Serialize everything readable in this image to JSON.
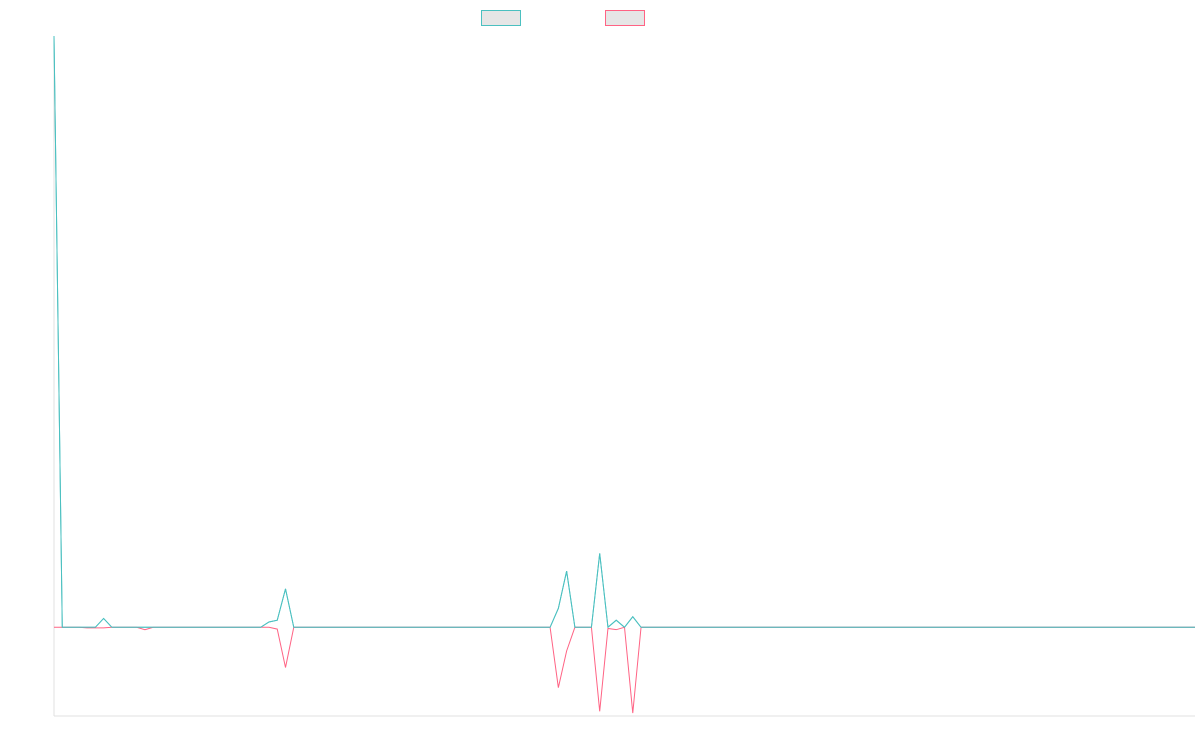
{
  "chart_data": {
    "type": "line",
    "title": "",
    "xlabel": "",
    "ylabel": "",
    "grid": false,
    "legend_position": "top-center",
    "x": [
      0,
      1,
      2,
      3,
      4,
      5,
      6,
      7,
      8,
      9,
      10,
      11,
      12,
      13,
      14,
      15,
      16,
      17,
      18,
      19,
      20,
      21,
      22,
      23,
      24,
      25,
      26,
      27,
      28,
      29,
      30,
      31,
      32,
      33,
      34,
      35,
      36,
      37,
      38,
      39,
      40,
      41,
      42,
      43,
      44,
      45,
      46,
      47,
      48,
      49,
      50,
      51,
      52,
      53,
      54,
      55,
      56,
      57,
      58,
      59,
      60,
      61,
      62,
      63,
      64,
      65,
      66,
      67,
      68,
      69,
      70,
      71,
      72,
      73,
      74,
      75,
      76,
      77,
      78,
      79,
      80,
      81,
      82,
      83,
      84,
      85,
      86,
      87,
      88,
      89,
      90,
      91,
      92,
      93,
      94,
      95,
      96,
      97,
      98,
      99,
      100,
      101,
      102,
      103,
      104,
      105,
      106,
      107,
      108,
      109,
      110,
      111,
      112,
      113,
      114,
      115,
      116,
      117,
      118,
      119,
      120,
      121,
      122,
      123,
      124,
      125,
      126,
      127,
      128,
      129,
      130,
      131,
      132,
      133,
      134,
      135,
      136,
      137,
      138
    ],
    "ylim": [
      -0.15,
      1.0
    ],
    "series": [
      {
        "name": "",
        "color": "#4bc0c0",
        "fill": "#e6e6e6",
        "values": [
          1.0,
          0.0,
          0.0,
          0.0,
          0.0,
          0.0,
          0.015,
          0.0,
          0.0,
          0.0,
          0.0,
          0.0,
          0.0,
          0.0,
          0.0,
          0.0,
          0.0,
          0.0,
          0.0,
          0.0,
          0.0,
          0.0,
          0.0,
          0.0,
          0.0,
          0.0,
          0.009,
          0.012,
          0.065,
          0.0,
          0.0,
          0.0,
          0.0,
          0.0,
          0.0,
          0.0,
          0.0,
          0.0,
          0.0,
          0.0,
          0.0,
          0.0,
          0.0,
          0.0,
          0.0,
          0.0,
          0.0,
          0.0,
          0.0,
          0.0,
          0.0,
          0.0,
          0.0,
          0.0,
          0.0,
          0.0,
          0.0,
          0.0,
          0.0,
          0.0,
          0.0,
          0.032,
          0.095,
          0.0,
          0.0,
          0.0,
          0.125,
          0.0,
          0.012,
          0.0,
          0.018,
          0.0,
          0.0,
          0.0,
          0.0,
          0.0,
          0.0,
          0.0,
          0.0,
          0.0,
          0.0,
          0.0,
          0.0,
          0.0,
          0.0,
          0.0,
          0.0,
          0.0,
          0.0,
          0.0,
          0.0,
          0.0,
          0.0,
          0.0,
          0.0,
          0.0,
          0.0,
          0.0,
          0.0,
          0.0,
          0.0,
          0.0,
          0.0,
          0.0,
          0.0,
          0.0,
          0.0,
          0.0,
          0.0,
          0.0,
          0.0,
          0.0,
          0.0,
          0.0,
          0.0,
          0.0,
          0.0,
          0.0,
          0.0,
          0.0,
          0.0,
          0.0,
          0.0,
          0.0,
          0.0,
          0.0,
          0.0,
          0.0,
          0.0,
          0.0,
          0.0,
          0.0,
          0.0,
          0.0,
          0.0,
          0.0,
          0.0,
          0.0,
          0.0
        ]
      },
      {
        "name": "",
        "color": "#ff6384",
        "fill": "#e6e6e6",
        "values": [
          0.0,
          0.0,
          0.0,
          0.0,
          -0.001,
          -0.001,
          -0.001,
          0.0,
          0.0,
          0.0,
          0.0,
          -0.004,
          0.0,
          0.0,
          0.0,
          0.0,
          0.0,
          0.0,
          0.0,
          0.0,
          0.0,
          0.0,
          0.0,
          0.0,
          0.0,
          0.0,
          0.0,
          -0.003,
          -0.068,
          0.0,
          0.0,
          0.0,
          0.0,
          0.0,
          0.0,
          0.0,
          0.0,
          0.0,
          0.0,
          0.0,
          0.0,
          0.0,
          0.0,
          0.0,
          0.0,
          0.0,
          0.0,
          0.0,
          0.0,
          0.0,
          0.0,
          0.0,
          0.0,
          0.0,
          0.0,
          0.0,
          0.0,
          0.0,
          0.0,
          0.0,
          0.0,
          -0.102,
          -0.04,
          0.0,
          0.0,
          0.0,
          -0.142,
          -0.002,
          -0.004,
          0.0,
          -0.145,
          0.0,
          0.0,
          0.0,
          0.0,
          0.0,
          0.0,
          0.0,
          0.0,
          0.0,
          0.0,
          0.0,
          0.0,
          0.0,
          0.0,
          0.0,
          0.0,
          0.0,
          0.0,
          0.0,
          0.0,
          0.0,
          0.0,
          0.0,
          0.0,
          0.0,
          0.0,
          0.0,
          0.0,
          0.0,
          0.0,
          0.0,
          0.0,
          0.0,
          0.0,
          0.0,
          0.0,
          0.0,
          0.0,
          0.0,
          0.0,
          0.0,
          0.0,
          0.0,
          0.0,
          0.0,
          0.0,
          0.0,
          0.0,
          0.0,
          0.0,
          0.0,
          0.0,
          0.0,
          0.0,
          0.0,
          0.0,
          0.0,
          0.0,
          0.0,
          0.0,
          0.0,
          0.0,
          0.0,
          0.0,
          0.0,
          0.0,
          0.0,
          0.0
        ]
      }
    ]
  }
}
